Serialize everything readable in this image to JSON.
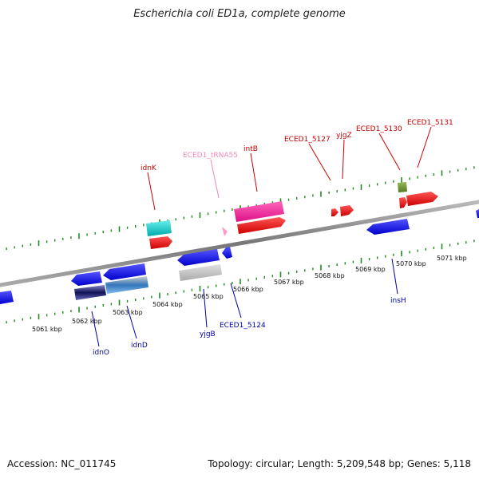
{
  "title": "Escherichia coli ED1a, complete genome",
  "footer": {
    "accession": "Accession: NC_011745",
    "summary": "Topology: circular; Length: 5,209,548 bp; Genes: 5,118"
  },
  "colors": {
    "forward_label": "#cc0000",
    "reverse_label": "#0000aa",
    "trna_label": "#ee88bb",
    "backbone": "#888888",
    "ticks": "#228822"
  },
  "kbp_labels": [
    "5061 kbp",
    "5062 kbp",
    "5063 kbp",
    "5064 kbp",
    "5065 kbp",
    "5066 kbp",
    "5067 kbp",
    "5068 kbp",
    "5069 kbp",
    "5070 kbp",
    "5071 kbp"
  ],
  "forward_labels": [
    "idnK",
    "ECED1_tRNA55",
    "intB",
    "ECED1_5127",
    "yjgZ",
    "ECED1_5130",
    "ECED1_5131"
  ],
  "reverse_labels": [
    "idnO",
    "idnD",
    "yjgB",
    "ECED1_5124",
    "insH"
  ]
}
